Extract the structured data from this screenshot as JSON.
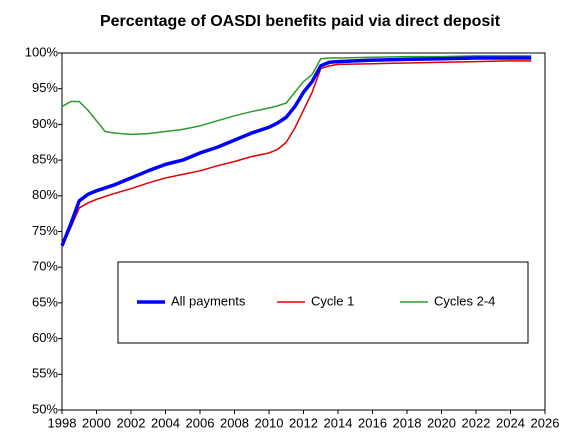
{
  "chart_data": {
    "type": "line",
    "title": "Percentage of OASDI benefits paid via direct deposit",
    "x": [
      1998,
      1998.5,
      1999,
      1999.5,
      2000,
      2000.5,
      2001,
      2002,
      2003,
      2004,
      2005,
      2006,
      2007,
      2008,
      2009,
      2010,
      2010.5,
      2011,
      2011.5,
      2012,
      2012.5,
      2013,
      2013.5,
      2014,
      2016,
      2018,
      2020,
      2022,
      2024,
      2025.2
    ],
    "series": [
      {
        "name": "All payments",
        "color": "#0000ff",
        "width": 3.5,
        "values": [
          73,
          76,
          79.3,
          80.2,
          80.7,
          81.1,
          81.5,
          82.5,
          83.5,
          84.4,
          85,
          86,
          86.8,
          87.8,
          88.8,
          89.6,
          90.2,
          91,
          92.5,
          94.5,
          96,
          98.2,
          98.7,
          98.8,
          99,
          99.1,
          99.2,
          99.3,
          99.3,
          99.3
        ]
      },
      {
        "name": "Cycle 1",
        "color": "#e00000",
        "width": 1.5,
        "values": [
          72.8,
          75.5,
          78.3,
          79,
          79.5,
          79.9,
          80.3,
          81,
          81.8,
          82.5,
          83,
          83.5,
          84.2,
          84.8,
          85.5,
          86,
          86.5,
          87.5,
          89.5,
          92,
          94.5,
          97.8,
          98.2,
          98.4,
          98.5,
          98.6,
          98.7,
          98.8,
          98.9,
          98.9
        ]
      },
      {
        "name": "Cycles 2-4",
        "color": "#2e9a2e",
        "width": 1.5,
        "values": [
          92.5,
          93.2,
          93.2,
          92,
          90.5,
          89,
          88.8,
          88.6,
          88.7,
          89,
          89.3,
          89.8,
          90.5,
          91.2,
          91.8,
          92.3,
          92.6,
          93,
          94.5,
          96,
          97,
          99.2,
          99.3,
          99.3,
          99.4,
          99.5,
          99.5,
          99.6,
          99.6,
          99.6
        ]
      }
    ],
    "xlim": [
      1998,
      2026
    ],
    "xticks": [
      1998,
      2000,
      2002,
      2004,
      2006,
      2008,
      2010,
      2012,
      2014,
      2016,
      2018,
      2020,
      2022,
      2024,
      2026
    ],
    "ylim": [
      50,
      100
    ],
    "yticks": [
      {
        "value": 50,
        "label": "50%"
      },
      {
        "value": 55,
        "label": "55%"
      },
      {
        "value": 60,
        "label": "60%"
      },
      {
        "value": 65,
        "label": "65%"
      },
      {
        "value": 70,
        "label": "70%"
      },
      {
        "value": 75,
        "label": "75%"
      },
      {
        "value": 80,
        "label": "80%"
      },
      {
        "value": 85,
        "label": "85%"
      },
      {
        "value": 90,
        "label": "90%"
      },
      {
        "value": 95,
        "label": "95%"
      },
      {
        "value": 100,
        "label": "100%"
      }
    ],
    "grid": false
  }
}
